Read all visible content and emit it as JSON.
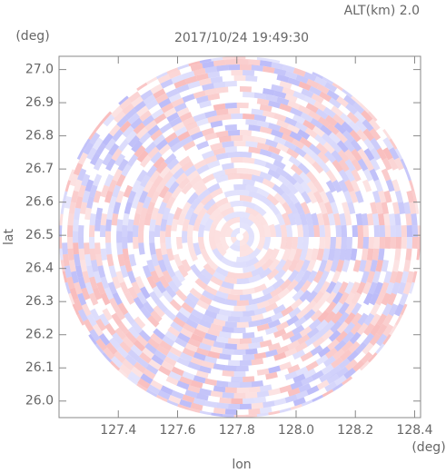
{
  "chart_data": {
    "type": "radar",
    "title": "2017/10/24 19:49:30",
    "subtitle": "ALT(km) 2.0",
    "x_label": "lon",
    "y_label": "lat",
    "x_unit": "(deg)",
    "y_unit": "(deg)",
    "xlim": [
      127.2,
      128.42
    ],
    "ylim": [
      25.95,
      27.04
    ],
    "xticks": [
      {
        "value": 127.4,
        "label": "127.4"
      },
      {
        "value": 127.6,
        "label": "127.6"
      },
      {
        "value": 127.8,
        "label": "127.8"
      },
      {
        "value": 128.0,
        "label": "128.0"
      },
      {
        "value": 128.2,
        "label": "128.2"
      },
      {
        "value": 128.4,
        "label": "128.4"
      }
    ],
    "yticks": [
      {
        "value": 26.0,
        "label": "26.0"
      },
      {
        "value": 26.1,
        "label": "26.1"
      },
      {
        "value": 26.2,
        "label": "26.2"
      },
      {
        "value": 26.3,
        "label": "26.3"
      },
      {
        "value": 26.4,
        "label": "26.4"
      },
      {
        "value": 26.5,
        "label": "26.5"
      },
      {
        "value": 26.6,
        "label": "26.6"
      },
      {
        "value": 26.7,
        "label": "26.7"
      },
      {
        "value": 26.8,
        "label": "26.8"
      },
      {
        "value": 26.9,
        "label": "26.9"
      },
      {
        "value": 27.0,
        "label": "27.0"
      }
    ]
  }
}
